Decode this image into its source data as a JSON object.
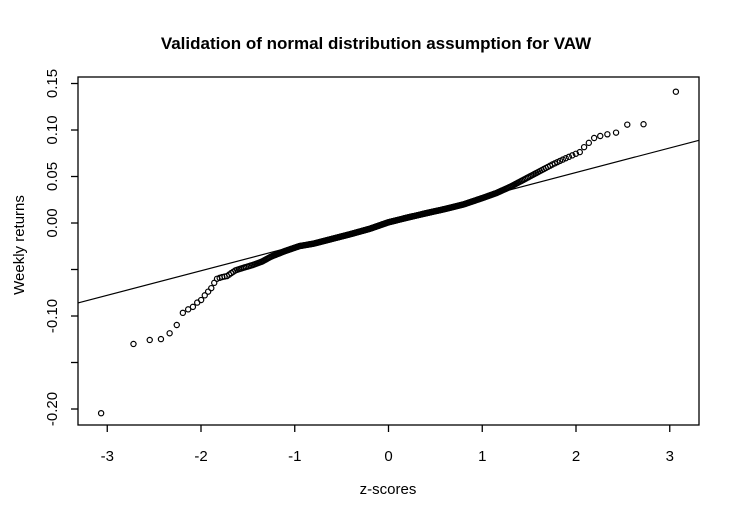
{
  "figure": {
    "background_color": "#ffffff",
    "foreground_color": "#000000"
  },
  "chart_data": {
    "type": "scatter",
    "subtype": "qqnorm-plot",
    "title": "Validation of normal distribution assumption for VAW",
    "xlabel": "z-scores",
    "ylabel": "Weekly returns",
    "xlim": [
      -3.312,
      3.312
    ],
    "ylim": [
      -0.2172,
      0.157
    ],
    "grid": false,
    "legend": null,
    "x_ticks": [
      {
        "z": -3,
        "label": "-3"
      },
      {
        "z": -2,
        "label": "-2"
      },
      {
        "z": -1,
        "label": "-1"
      },
      {
        "z": 0,
        "label": "0"
      },
      {
        "z": 1,
        "label": "1"
      },
      {
        "z": 2,
        "label": "2"
      },
      {
        "z": 3,
        "label": "3"
      }
    ],
    "y_ticks": [
      {
        "v": 0.15,
        "label": "0.15"
      },
      {
        "v": 0.1,
        "label": "0.10"
      },
      {
        "v": 0.05,
        "label": "0.05"
      },
      {
        "v": 0.0,
        "label": "0.00"
      },
      {
        "v": -0.05,
        "label": ""
      },
      {
        "v": -0.1,
        "label": "-0.10"
      },
      {
        "v": -0.15,
        "label": ""
      },
      {
        "v": -0.2,
        "label": "-0.20"
      }
    ],
    "n_points": 460,
    "point_style": {
      "shape": "open-circle",
      "radius_px": 2.6,
      "stroke_px": 1.2,
      "color": "#000000"
    },
    "reference_line": {
      "slope": 0.0264,
      "intercept": 0.0015,
      "color": "#000000"
    },
    "quantile_map": [
      [
        -3.065,
        -0.2045
      ],
      [
        -2.72,
        -0.13
      ],
      [
        -2.55,
        -0.1258
      ],
      [
        -2.43,
        -0.125
      ],
      [
        -2.34,
        -0.1192
      ],
      [
        -2.26,
        -0.11
      ],
      [
        -2.2,
        -0.097
      ],
      [
        -2.14,
        -0.093
      ],
      [
        -2.09,
        -0.0906
      ],
      [
        -2.05,
        -0.0862
      ],
      [
        -2.0,
        -0.083
      ],
      [
        -1.96,
        -0.0778
      ],
      [
        -1.93,
        -0.0745
      ],
      [
        -1.89,
        -0.07
      ],
      [
        -1.86,
        -0.0645
      ],
      [
        -1.83,
        -0.06
      ],
      [
        -1.78,
        -0.0582
      ],
      [
        -1.72,
        -0.057
      ],
      [
        -1.68,
        -0.054
      ],
      [
        -1.63,
        -0.0508
      ],
      [
        -1.55,
        -0.0482
      ],
      [
        -1.45,
        -0.0452
      ],
      [
        -1.35,
        -0.0415
      ],
      [
        -1.25,
        -0.036
      ],
      [
        -1.1,
        -0.03
      ],
      [
        -0.95,
        -0.0248
      ],
      [
        -0.8,
        -0.0222
      ],
      [
        -0.6,
        -0.017
      ],
      [
        -0.4,
        -0.0118
      ],
      [
        -0.2,
        -0.0062
      ],
      [
        0.0,
        0.0008
      ],
      [
        0.2,
        0.0058
      ],
      [
        0.4,
        0.0105
      ],
      [
        0.6,
        0.015
      ],
      [
        0.8,
        0.02
      ],
      [
        1.0,
        0.0268
      ],
      [
        1.15,
        0.0322
      ],
      [
        1.3,
        0.039
      ],
      [
        1.45,
        0.047
      ],
      [
        1.6,
        0.055
      ],
      [
        1.75,
        0.063
      ],
      [
        1.88,
        0.0692
      ],
      [
        1.97,
        0.0732
      ],
      [
        2.04,
        0.0762
      ],
      [
        2.09,
        0.082
      ],
      [
        2.14,
        0.0865
      ],
      [
        2.2,
        0.092
      ],
      [
        2.26,
        0.0936
      ],
      [
        2.34,
        0.0955
      ],
      [
        2.43,
        0.0972
      ],
      [
        2.55,
        0.106
      ],
      [
        2.72,
        0.1062
      ],
      [
        3.065,
        0.1412
      ]
    ],
    "notable_points": [
      {
        "z": -3.06,
        "value": -0.205,
        "note": "minimum weekly return outlier"
      },
      {
        "z": 3.06,
        "value": 0.141,
        "note": "maximum weekly return outlier"
      }
    ]
  }
}
